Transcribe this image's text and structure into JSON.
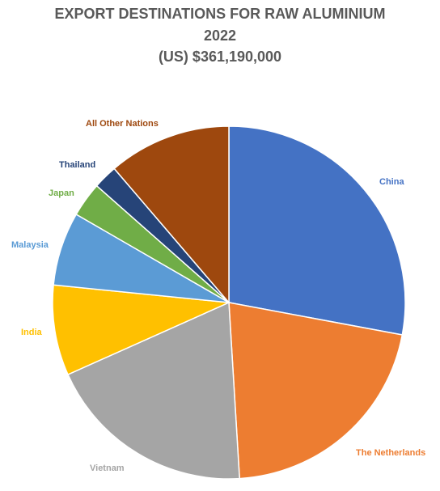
{
  "chart_data": {
    "type": "pie",
    "title_lines": [
      "EXPORT DESTINATIONS FOR RAW ALUMINIUM",
      "2022",
      "(US) $361,190,000"
    ],
    "slices": [
      {
        "label": "China",
        "value": 29.0,
        "color": "#4472C4"
      },
      {
        "label": "The Netherlands",
        "value": 21.9,
        "color": "#ED7D31"
      },
      {
        "label": "Vietnam",
        "value": 20.0,
        "color": "#A5A5A5"
      },
      {
        "label": "India",
        "value": 8.6,
        "color": "#FFC000"
      },
      {
        "label": "Malaysia",
        "value": 7.0,
        "color": "#5B9BD5"
      },
      {
        "label": "Japan",
        "value": 3.3,
        "color": "#70AD47"
      },
      {
        "label": "Thailand",
        "value": 2.3,
        "color": "#264478"
      },
      {
        "label": "All Other Nations",
        "value": 11.7,
        "color": "#9E480E"
      }
    ],
    "label_colors": {
      "China": "#4472C4",
      "The Netherlands": "#ED7D31",
      "Vietnam": "#A5A5A5",
      "India": "#FFC000",
      "Malaysia": "#5B9BD5",
      "Japan": "#70AD47",
      "Thailand": "#264478",
      "All Other Nations": "#9E480E"
    }
  }
}
